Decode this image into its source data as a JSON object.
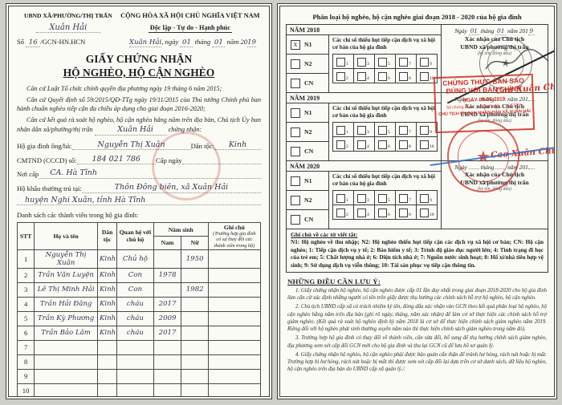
{
  "colors": {
    "stamp_red": "#cd2d23",
    "ink_blue": "#3a6fc4",
    "handwriting_ink": "#30344d",
    "paper": "#fbfbf6"
  },
  "left_page": {
    "issuer_label": "UBND XÃ/PHƯỜNG/THỊ TRẤN",
    "issuer_value": "Xuân Hải",
    "motto1": "CỘNG HÒA XÃ HỘI CHỦ NGHĨA VIỆT NAM",
    "motto2": "Độc lập - Tự do - Hạnh phúc",
    "so_label": "Số",
    "so_value": "16",
    "so_suffix": "/GCN-HN.HCN",
    "date_place": "Xuân Hải",
    "date_ngay": ", ngày",
    "date_d": "01",
    "date_thang": "tháng",
    "date_m": "01",
    "date_nam": "năm 20",
    "date_y": "19",
    "title1": "GIẤY CHỨNG NHẬN",
    "title2": "HỘ NGHÈO, HỘ CẬN NGHÈO",
    "legal1": "Căn cứ Luật Tổ chức chính quyền địa phương ngày 19 tháng 6 năm 2015;",
    "legal2": "Căn cứ Quyết định số 59/2015/QĐ-TTg ngày 19/11/2015 của Thủ tướng Chính phủ ban hành chuẩn nghèo tiếp cận đa chiều áp dụng cho giai đoạn 2016-2020;",
    "legal3_pre": "Căn cứ kết quả rà soát hộ nghèo, hộ cận nghèo hằng năm trên địa bàn, Chủ tịch Ủy ban nhân dân xã/phường/thị trấn",
    "legal3_value": "Xuân Hải",
    "legal3_post": "chứng nhận:",
    "hh_label": "Hộ gia đình ông/bà:",
    "hh_value": "Nguyễn Thị Xuân",
    "dt_label": "Dân tộc:",
    "dt_value": "Kinh",
    "id_label": "CMTND (CCCD) số:",
    "id_value": "184 021 786",
    "capngay_label": "Cấp ngày",
    "noicap_label": "Nơi cấp",
    "noicap_value": "CA. Hà Tĩnh",
    "hokhau_label": "Hộ khẩu thường trú tại:",
    "hokhau_value1": "Thôn Đông biên, xã Xuân Hải",
    "hokhau_value2": "huyện Nghi Xuân, tỉnh Hà Tĩnh",
    "members_label": "Danh sách các thành viên trong hộ gia đình:",
    "table": {
      "headers": {
        "stt": "STT",
        "name": "Họ và tên",
        "ethnic": "Dân tộc",
        "relation": "Quan hệ với chủ hộ",
        "birth": "Năm sinh",
        "nam": "Nam",
        "nu": "Nữ",
        "note": "Ghi chú",
        "note_sub": "(Trường hợp gia đình có sự thay đổi các thành viên trong hộ)"
      },
      "rows": [
        {
          "stt": "1",
          "name": "Nguyễn Thị Xuân",
          "ethnic": "Kinh",
          "relation": "Chủ hộ",
          "nam": "",
          "nu": "1950",
          "note": ""
        },
        {
          "stt": "2",
          "name": "Trần Văn Luyện",
          "ethnic": "Kinh",
          "relation": "Con",
          "nam": "1978",
          "nu": "",
          "note": ""
        },
        {
          "stt": "3",
          "name": "Lê Thị Minh Hải",
          "ethnic": "Kinh",
          "relation": "Con",
          "nam": "",
          "nu": "1982",
          "note": ""
        },
        {
          "stt": "4",
          "name": "Trần Hải Đăng",
          "ethnic": "Kinh",
          "relation": "cháu",
          "nam": "2017",
          "nu": "",
          "note": ""
        },
        {
          "stt": "5",
          "name": "Trần Kỳ Phương",
          "ethnic": "Kinh",
          "relation": "cháu",
          "nam": "2009",
          "nu": "",
          "note": ""
        },
        {
          "stt": "6",
          "name": "Trần Bảo Lâm",
          "ethnic": "Kinh",
          "relation": "cháu",
          "nam": "2017",
          "nu": "",
          "note": ""
        },
        {
          "stt": "7",
          "name": "",
          "ethnic": "",
          "relation": "",
          "nam": "",
          "nu": "",
          "note": ""
        },
        {
          "stt": "8",
          "name": "",
          "ethnic": "",
          "relation": "",
          "nam": "",
          "nu": "",
          "note": ""
        },
        {
          "stt": "9",
          "name": "",
          "ethnic": "",
          "relation": "",
          "nam": "",
          "nu": "",
          "note": ""
        },
        {
          "stt": "10",
          "name": "",
          "ethnic": "",
          "relation": "",
          "nam": "",
          "nu": "",
          "note": ""
        }
      ]
    }
  },
  "right_page": {
    "title": "Phân loại hộ nghèo, hộ cận nghèo giai đoạn 2018 - 2020 của hộ gia đình",
    "indicators_title": "Các chỉ số thiếu hụt tiếp cận dịch vụ xã hội cơ bản của hộ gia đình",
    "indicator_numbers": [
      [
        1,
        3,
        5,
        7,
        9
      ],
      [
        2,
        4,
        6,
        8,
        10
      ]
    ],
    "labels": {
      "n1": "N1",
      "n2": "N2",
      "cn": "CN",
      "ngay": "Ngày",
      "thang": "tháng",
      "nam201": "năm 201",
      "confirm1": "Xác nhận của Chủ tịch",
      "confirm2": "UBND xã/phường/thị trấn",
      "confirm3": "(ký tên, đóng dấu)"
    },
    "years": [
      {
        "label": "NĂM 2018",
        "d": "01",
        "m": "01",
        "y": "9",
        "n1_mark": "x",
        "n2_mark": "",
        "cn_mark": ""
      },
      {
        "label": "NĂM 2019",
        "d": "",
        "m": "",
        "y": "",
        "n1_mark": "",
        "n2_mark": "",
        "cn_mark": ""
      },
      {
        "label": "NĂM 2020",
        "d": "",
        "m": "",
        "y": "",
        "n1_mark": "",
        "n2_mark": "",
        "cn_mark": ""
      }
    ],
    "abbrev_title": "Ghi chú về các từ viết tắt:",
    "abbrev_text": "N1: Hộ nghèo về thu nhập; N2: Hộ nghèo thiếu hụt tiếp cận các dịch vụ xã hội cơ bản; CN: Hộ cận nghèo; 1: Tiếp cận dịch vụ y tế; 2: Bảo hiểm y tế; 3: Trình độ giáo dục người lớn; 4: Tình trạng đi học của trẻ em; 5: Chất lượng nhà ở; 6: Diện tích nhà ở; 7: Nguồn nước sinh hoạt; 8: Hố xí/nhà tiêu hợp vệ sinh; 9: Sử dụng dịch vụ viễn thông; 10: Tài sản phục vụ tiếp cận thông tin.",
    "notes_title": "NHỮNG ĐIỀU CẦN LƯU Ý:",
    "notes": [
      "1. Giấy chứng nhận hộ nghèo, hộ cận nghèo được cấp 01 lần duy nhất trong giai đoạn 2018-2020 cho hộ gia đình làm căn cứ xác định những người có tên trên giấy được thụ hưởng các chính sách hỗ trợ hộ nghèo, hộ cận nghèo.",
      "2. Chủ tịch UBND cấp xã có trách nhiệm ký tên, đóng dấu xác nhận vào GCN theo kết quả phân loại hộ nghèo, hộ cận nghèo hằng năm trên địa bàn (ghi rõ ngày, tháng, năm xác nhận) để làm cơ sở thực hiện các chính sách hỗ trợ giảm nghèo. (Kết quả rà soát hộ nghèo định kỳ năm 2018 là cơ sở để thực hiện chính sách giảm nghèo năm 2019. Riêng đối với hộ nghèo phát sinh thường xuyên năm nào thì thực hiện chính sách giảm nghèo trong năm đó).",
      "3. Trường hợp hộ gia đình có thay đổi về thành viên, cần sửa đổi, bổ sung để thụ hưởng chính sách giảm nghèo, địa phương xem xét cấp đổi GCN mới cho hộ gia đình và thu lại GCN cũ để lưu hồ sơ quản lý.",
      "4. Giấy chứng nhận hộ nghèo, hộ cận nghèo phải được bảo quản cẩn thận để tránh hư hỏng, rách nát hoặc bị mất. Trường hợp bị hư hỏng, rách nát hoặc bị mất thì được xem xét cấp đổi lại dựa trên cơ sở danh sách, dữ liệu hộ nghèo, hộ cận nghèo trên địa bàn do UBND cấp xã quản lý./."
    ]
  },
  "stamps": {
    "certify_line1": "CHỨNG THỰC BẢN SAO",
    "certify_line2": "ĐÚNG VỚI BẢN CHÍNH",
    "certify_date": "NGÀY 08-05-2019",
    "certify_no": "Số chứng thực: ..... Quyển số: ..... SCT/BS",
    "certify_footer": "CHỦ TỊCH ỦY BAN NHÂN DÂN XÃ XUÂN HẢI",
    "signature_name": "Cao Xuân Chương"
  }
}
